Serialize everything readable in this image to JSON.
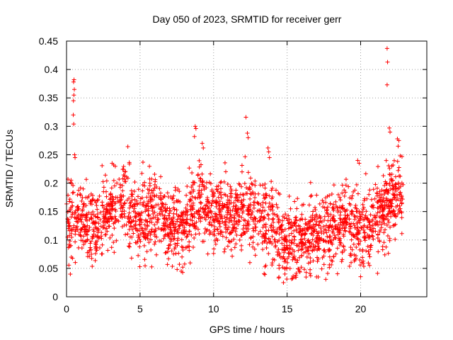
{
  "chart_data": {
    "type": "scatter",
    "title": "Day 050 of 2023, SRMTID for receiver gerr",
    "xlabel": "GPS time / hours",
    "ylabel": "SRMTID / TECUs",
    "xlim": [
      0,
      24.5
    ],
    "ylim": [
      0,
      0.45
    ],
    "xticks": [
      0,
      5,
      10,
      15,
      20
    ],
    "yticks": [
      0,
      0.05,
      0.1,
      0.15,
      0.2,
      0.25,
      0.3,
      0.35,
      0.4,
      0.45
    ],
    "xtick_labels": [
      "0",
      "5",
      "10",
      "15",
      "20"
    ],
    "ytick_labels": [
      "0",
      "0.05",
      "0.1",
      "0.15",
      "0.2",
      "0.25",
      "0.3",
      "0.35",
      "0.4",
      "0.45"
    ],
    "grid": true,
    "marker": "plus",
    "color": "#ff0000",
    "series": [
      {
        "name": "gerr",
        "profile_hours": [
          0,
          1,
          2,
          3,
          4,
          5,
          6,
          7,
          8,
          9,
          10,
          11,
          12,
          13,
          14,
          15,
          16,
          17,
          18,
          19,
          20,
          21,
          22,
          23
        ],
        "profile_mean": [
          0.14,
          0.13,
          0.12,
          0.15,
          0.17,
          0.13,
          0.15,
          0.12,
          0.12,
          0.17,
          0.14,
          0.15,
          0.16,
          0.14,
          0.12,
          0.1,
          0.1,
          0.11,
          0.12,
          0.13,
          0.12,
          0.13,
          0.17,
          0.18
        ],
        "points": [
          [
            0.48,
            0.378
          ],
          [
            0.51,
            0.382
          ],
          [
            0.53,
            0.365
          ],
          [
            0.5,
            0.355
          ],
          [
            0.47,
            0.345
          ],
          [
            0.46,
            0.32
          ],
          [
            0.49,
            0.304
          ],
          [
            0.55,
            0.25
          ],
          [
            0.58,
            0.245
          ],
          [
            3.1,
            0.235
          ],
          [
            3.2,
            0.232
          ],
          [
            8.75,
            0.3
          ],
          [
            8.8,
            0.296
          ],
          [
            8.7,
            0.282
          ],
          [
            9.3,
            0.262
          ],
          [
            12.2,
            0.316
          ],
          [
            12.3,
            0.288
          ],
          [
            12.35,
            0.28
          ],
          [
            13.7,
            0.262
          ],
          [
            13.75,
            0.255
          ],
          [
            13.8,
            0.245
          ],
          [
            14.7,
            0.052
          ],
          [
            14.75,
            0.025
          ],
          [
            14.85,
            0.04
          ],
          [
            16.6,
            0.037
          ],
          [
            17.0,
            0.035
          ],
          [
            19.8,
            0.24
          ],
          [
            19.9,
            0.235
          ],
          [
            21.8,
            0.437
          ],
          [
            21.83,
            0.413
          ],
          [
            21.8,
            0.373
          ],
          [
            21.95,
            0.297
          ],
          [
            22.0,
            0.29
          ],
          [
            22.5,
            0.278
          ],
          [
            22.6,
            0.275
          ],
          [
            22.55,
            0.265
          ],
          [
            7.8,
            0.045
          ],
          [
            7.9,
            0.052
          ]
        ]
      }
    ]
  }
}
